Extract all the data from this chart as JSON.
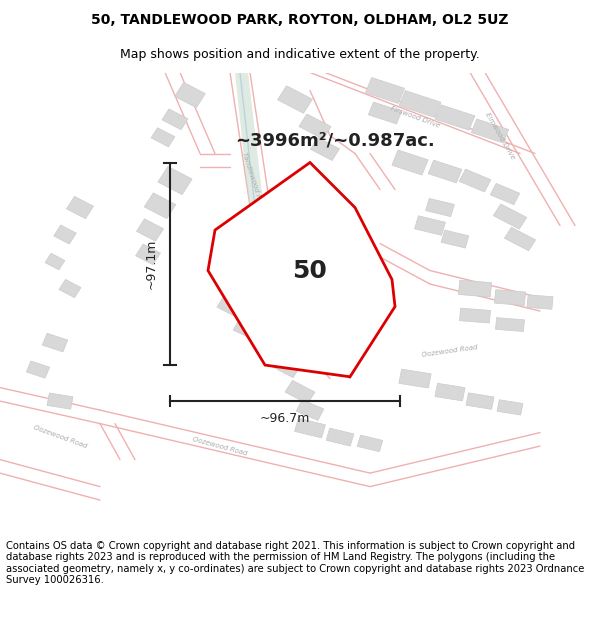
{
  "title": "50, TANDLEWOOD PARK, ROYTON, OLDHAM, OL2 5UZ",
  "subtitle": "Map shows position and indicative extent of the property.",
  "footer": "Contains OS data © Crown copyright and database right 2021. This information is subject to Crown copyright and database rights 2023 and is reproduced with the permission of HM Land Registry. The polygons (including the associated geometry, namely x, y co-ordinates) are subject to Crown copyright and database rights 2023 Ordnance Survey 100026316.",
  "area_label": "~3996m²/~0.987ac.",
  "property_number": "50",
  "dim_horizontal": "~96.7m",
  "dim_vertical": "~97.1m",
  "background_color": "#ffffff",
  "title_fontsize": 10,
  "subtitle_fontsize": 9,
  "footer_fontsize": 7.2,
  "road_color": "#f0b0b0",
  "road_lw": 1.0,
  "building_fill": "#d8d8d8",
  "building_edge": "#cccccc",
  "green_fill": "#c8ddd0",
  "blue_line_color": "#aaccdd",
  "property_edge_color": "#dd0000",
  "property_lw": 2.0,
  "label_color": "#aaaaaa",
  "dim_color": "#222222",
  "text_color": "#222222"
}
